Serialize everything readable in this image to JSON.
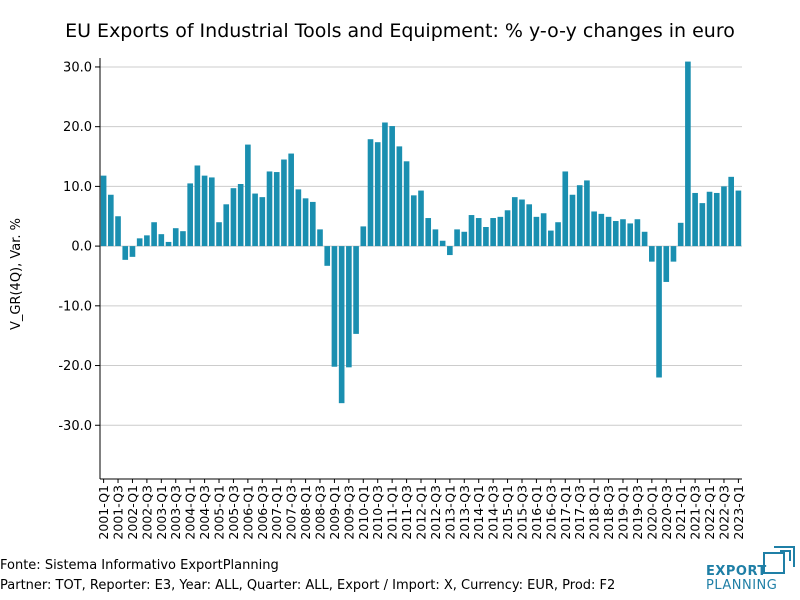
{
  "chart_data": {
    "type": "bar",
    "title": "EU Exports of Industrial Tools and Equipment: % y-o-y changes in euro",
    "ylabel": "V_GR(4Q), Var. %",
    "xlabel": "",
    "ylim": [
      -39,
      31.5
    ],
    "yticks": [
      30.0,
      20.0,
      10.0,
      0.0,
      -10.0,
      -20.0,
      -30.0
    ],
    "ytick_labels": [
      "30.0",
      "20.0",
      "10.0",
      "0.0",
      "-10.0",
      "-20.0",
      "-30.0"
    ],
    "bar_color": "#1a8fb0",
    "grid": "horizontal",
    "categories": [
      "2001-Q1",
      "2001-Q2",
      "2001-Q3",
      "2001-Q4",
      "2002-Q1",
      "2002-Q2",
      "2002-Q3",
      "2002-Q4",
      "2003-Q1",
      "2003-Q2",
      "2003-Q3",
      "2003-Q4",
      "2004-Q1",
      "2004-Q2",
      "2004-Q3",
      "2004-Q4",
      "2005-Q1",
      "2005-Q2",
      "2005-Q3",
      "2005-Q4",
      "2006-Q1",
      "2006-Q2",
      "2006-Q3",
      "2006-Q4",
      "2007-Q1",
      "2007-Q2",
      "2007-Q3",
      "2007-Q4",
      "2008-Q1",
      "2008-Q2",
      "2008-Q3",
      "2008-Q4",
      "2009-Q1",
      "2009-Q2",
      "2009-Q3",
      "2009-Q4",
      "2010-Q1",
      "2010-Q2",
      "2010-Q3",
      "2010-Q4",
      "2011-Q1",
      "2011-Q2",
      "2011-Q3",
      "2011-Q4",
      "2012-Q1",
      "2012-Q2",
      "2012-Q3",
      "2012-Q4",
      "2013-Q1",
      "2013-Q2",
      "2013-Q3",
      "2013-Q4",
      "2014-Q1",
      "2014-Q2",
      "2014-Q3",
      "2014-Q4",
      "2015-Q1",
      "2015-Q2",
      "2015-Q3",
      "2015-Q4",
      "2016-Q1",
      "2016-Q2",
      "2016-Q3",
      "2016-Q4",
      "2017-Q1",
      "2017-Q2",
      "2017-Q3",
      "2017-Q4",
      "2018-Q1",
      "2018-Q2",
      "2018-Q3",
      "2018-Q4",
      "2019-Q1",
      "2019-Q2",
      "2019-Q3",
      "2019-Q4",
      "2020-Q1",
      "2020-Q2",
      "2020-Q3",
      "2020-Q4",
      "2021-Q1",
      "2021-Q2",
      "2021-Q3",
      "2021-Q4",
      "2022-Q1",
      "2022-Q2",
      "2022-Q3",
      "2022-Q4",
      "2023-Q1"
    ],
    "tick_labels": [
      "2001-Q1",
      "2001-Q3",
      "2002-Q1",
      "2002-Q3",
      "2003-Q1",
      "2003-Q3",
      "2004-Q1",
      "2004-Q3",
      "2005-Q1",
      "2005-Q3",
      "2006-Q1",
      "2006-Q3",
      "2007-Q1",
      "2007-Q3",
      "2008-Q1",
      "2008-Q3",
      "2009-Q1",
      "2009-Q3",
      "2010-Q1",
      "2010-Q3",
      "2011-Q1",
      "2011-Q3",
      "2012-Q1",
      "2012-Q3",
      "2013-Q1",
      "2013-Q3",
      "2014-Q1",
      "2014-Q3",
      "2015-Q1",
      "2015-Q3",
      "2016-Q1",
      "2016-Q3",
      "2017-Q1",
      "2017-Q3",
      "2018-Q1",
      "2018-Q3",
      "2019-Q1",
      "2019-Q3",
      "2020-Q1",
      "2020-Q3",
      "2021-Q1",
      "2021-Q3",
      "2022-Q1",
      "2022-Q3",
      "2023-Q1"
    ],
    "values": [
      11.8,
      8.6,
      5.0,
      -2.3,
      -1.8,
      1.3,
      1.8,
      4.0,
      2.0,
      0.7,
      3.0,
      2.5,
      10.5,
      13.5,
      11.8,
      11.5,
      4.0,
      7.0,
      9.7,
      10.4,
      17.0,
      8.8,
      8.2,
      12.5,
      12.4,
      14.5,
      15.5,
      9.5,
      8.0,
      7.4,
      2.8,
      -3.3,
      -20.2,
      -26.3,
      -20.3,
      -14.7,
      3.3,
      17.9,
      17.4,
      20.7,
      20.1,
      16.7,
      14.2,
      8.5,
      9.3,
      4.7,
      2.8,
      0.9,
      -1.5,
      2.8,
      2.4,
      5.2,
      4.7,
      3.2,
      4.7,
      4.9,
      6.0,
      8.2,
      7.8,
      7.0,
      4.9,
      5.5,
      2.6,
      4.0,
      12.5,
      8.6,
      10.2,
      11.0,
      5.8,
      5.4,
      4.9,
      4.2,
      4.5,
      3.8,
      4.5,
      2.4,
      -2.6,
      -22.0,
      -6.0,
      -2.6,
      3.9,
      30.9,
      8.9,
      7.2,
      9.1,
      8.9,
      10.0,
      11.6,
      9.3
    ]
  },
  "footer": {
    "source": "Fonte: Sistema Informativo ExportPlanning",
    "params": "Partner: TOT, Reporter: E3, Year: ALL, Quarter: ALL, Export / Import: X, Currency: EUR, Prod: F2"
  },
  "brand": {
    "line1": "EXPORT",
    "line2": "PLANNING",
    "color": "#1f7fa6"
  }
}
